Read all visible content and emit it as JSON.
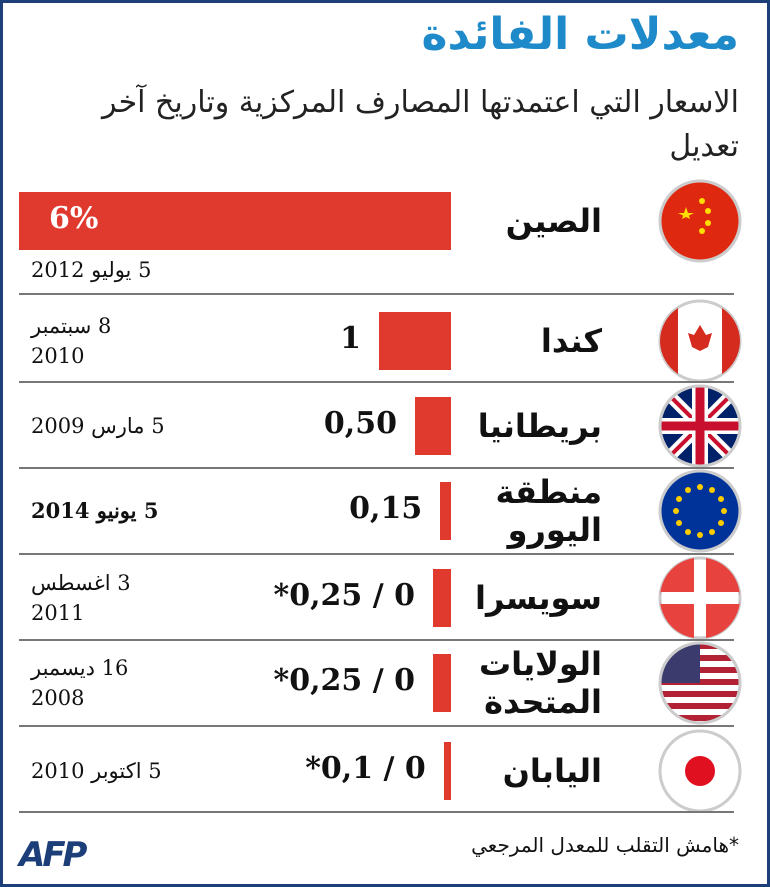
{
  "chart_data": {
    "type": "bar",
    "title": "معدلات الفائدة",
    "subtitle": "الاسعار التي اعتمدتها المصارف المركزية وتاريخ آخر تعديل",
    "categories": [
      "الصين",
      "كندا",
      "بريطانيا",
      "منطقة اليورو",
      "سويسرا",
      "الولايات المتحدة",
      "اليابان"
    ],
    "values": [
      6,
      1,
      0.5,
      0.15,
      0.25,
      0.25,
      0.1
    ],
    "value_labels": [
      "6%",
      "1",
      "0,50",
      "0,15",
      "*0,25 / 0",
      "*0,25 / 0",
      "*0,1 / 0"
    ],
    "dates": [
      "5 يوليو 2012",
      "8 سبتمبر 2010",
      "5 مارس 2009",
      "5 يونيو 2014",
      "3 اغسطس 2011",
      "16 ديسمبر 2008",
      "5 اكتوبر 2010"
    ],
    "color": "#e03a2f",
    "note": "*هامش التقلب للمعدل المرجعي",
    "source": "AFP"
  }
}
